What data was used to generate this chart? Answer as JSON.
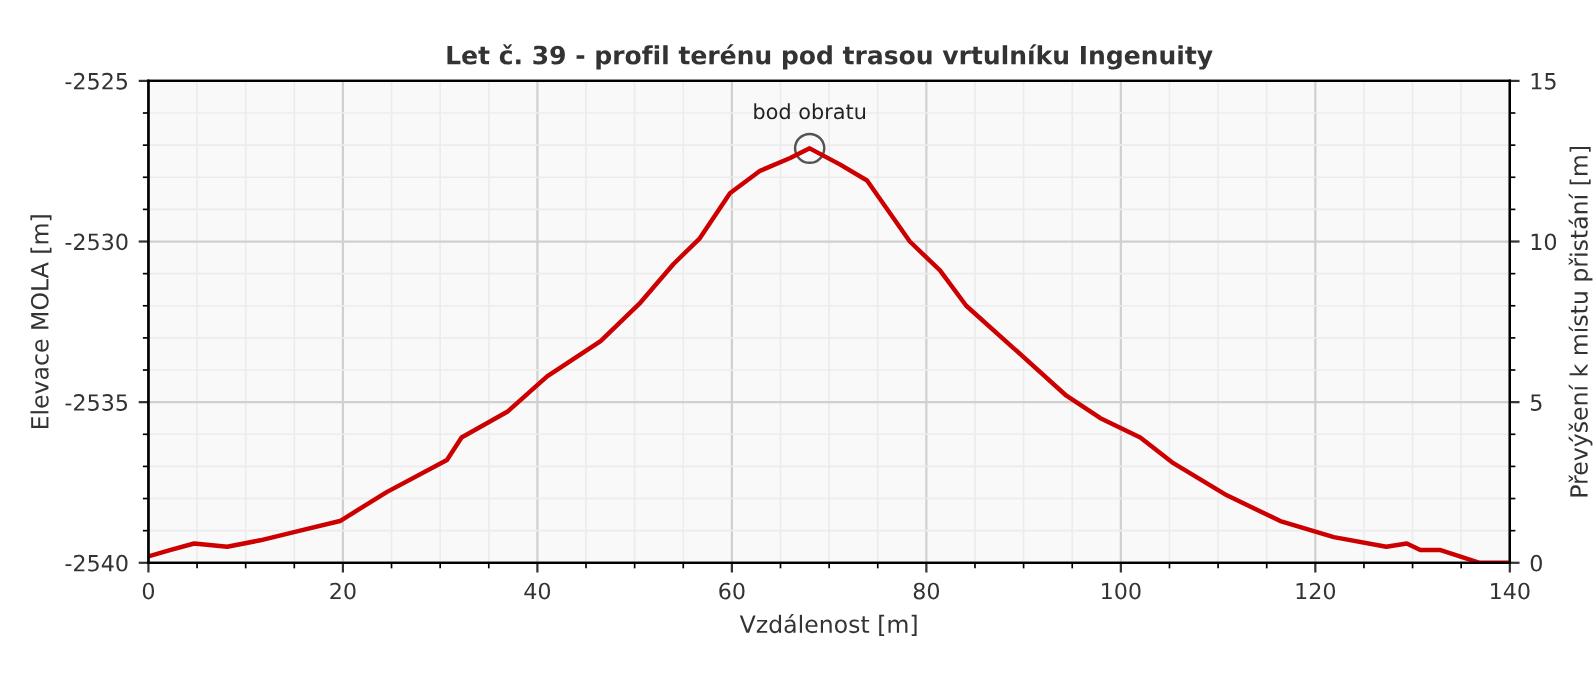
{
  "chart_data": {
    "type": "line",
    "title": "Let č. 39 - profil terénu pod trasou vrtulníku Ingenuity",
    "xlabel": "Vzdálenost [m]",
    "ylabel": "Elevace MOLA [m]",
    "y2label": "Převýšení k místu přistání [m]",
    "x": [
      0,
      2.3,
      4.7,
      8.1,
      11.5,
      15.6,
      19.7,
      24.5,
      30.7,
      32.2,
      36.9,
      41,
      46.5,
      50.6,
      54,
      56.7,
      59.8,
      62.9,
      66,
      68,
      71.1,
      73.9,
      78.3,
      81.4,
      84.1,
      88.9,
      94.4,
      97.9,
      102,
      105.4,
      110.9,
      116.4,
      121.9,
      127.3,
      129.4,
      130.8,
      132.8,
      136.9,
      140
    ],
    "series": [
      {
        "color": "#cc0000",
        "values": [
          -2539.8,
          -2539.6,
          -2539.4,
          -2539.5,
          -2539.3,
          -2539.0,
          -2538.7,
          -2537.8,
          -2536.8,
          -2536.1,
          -2535.3,
          -2534.2,
          -2533.1,
          -2531.9,
          -2530.7,
          -2529.9,
          -2528.5,
          -2527.8,
          -2527.4,
          -2527.1,
          -2527.6,
          -2528.1,
          -2530.0,
          -2530.9,
          -2532.0,
          -2533.3,
          -2534.8,
          -2535.5,
          -2536.1,
          -2536.9,
          -2537.9,
          -2538.7,
          -2539.2,
          -2539.5,
          -2539.4,
          -2539.6,
          -2539.6,
          -2540.0,
          -2540.0
        ]
      }
    ],
    "xlim": [
      0,
      140
    ],
    "xticks": [
      0,
      20,
      40,
      60,
      80,
      100,
      120,
      140
    ],
    "ylim": [
      -2540,
      -2525
    ],
    "yticks": [
      -2540,
      -2535,
      -2530,
      -2525
    ],
    "y2lim": [
      0,
      15
    ],
    "y2ticks": [
      0,
      5,
      10,
      15
    ],
    "annotations": [
      {
        "text": "bod obratu",
        "x": 68,
        "y": -2527.1
      }
    ],
    "grid": true,
    "marker": "none",
    "line_style": "solid"
  }
}
